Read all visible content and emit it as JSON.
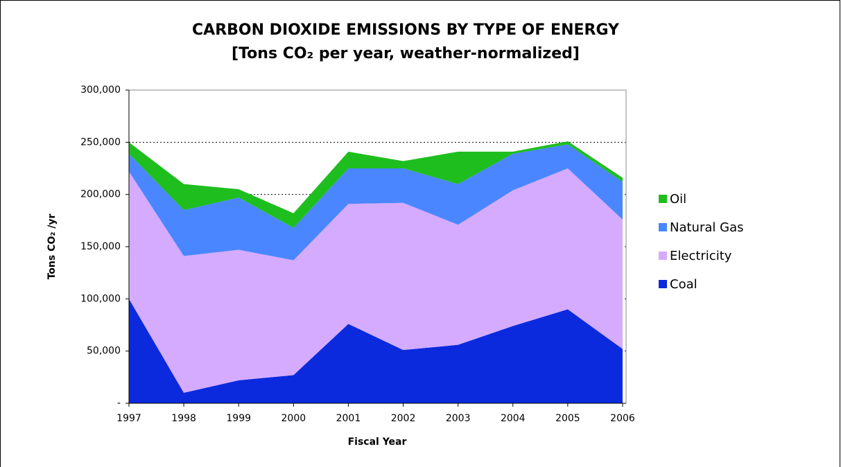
{
  "chart_data": {
    "type": "stacked_area",
    "title": "CARBON DIOXIDE EMISSIONS BY TYPE OF ENERGY",
    "subtitle": "[Tons CO₂ per year, weather-normalized]",
    "x_label": "Fiscal Year",
    "y_label": "Tons CO₂ /yr",
    "categories": [
      "1997",
      "1998",
      "1999",
      "2000",
      "2001",
      "2002",
      "2003",
      "2004",
      "2005",
      "2006"
    ],
    "series": [
      {
        "name": "Coal",
        "color": "#0b2ade",
        "values": [
          100000,
          10000,
          22000,
          27000,
          76000,
          51000,
          56000,
          74000,
          90000,
          52000
        ]
      },
      {
        "name": "Electricity",
        "color": "#d4abff",
        "values": [
          122000,
          131000,
          125000,
          110000,
          115000,
          141000,
          115000,
          130000,
          135000,
          124000
        ]
      },
      {
        "name": "Natural Gas",
        "color": "#4a86ff",
        "values": [
          17000,
          44000,
          50000,
          31000,
          34000,
          33000,
          39000,
          35000,
          23000,
          36000
        ]
      },
      {
        "name": "Oil",
        "color": "#1fbe1f",
        "values": [
          11000,
          25000,
          8000,
          14000,
          16000,
          7000,
          31000,
          2000,
          3000,
          4000
        ]
      }
    ],
    "ylim": [
      0,
      300000
    ],
    "yticks": [
      {
        "value": 0,
        "label": "-"
      },
      {
        "value": 50000,
        "label": "50,000"
      },
      {
        "value": 100000,
        "label": "100,000"
      },
      {
        "value": 150000,
        "label": "150,000"
      },
      {
        "value": 200000,
        "label": "200,000"
      },
      {
        "value": 250000,
        "label": "250,000"
      },
      {
        "value": 300000,
        "label": "300,000"
      }
    ],
    "grid": true,
    "legend": "right"
  }
}
